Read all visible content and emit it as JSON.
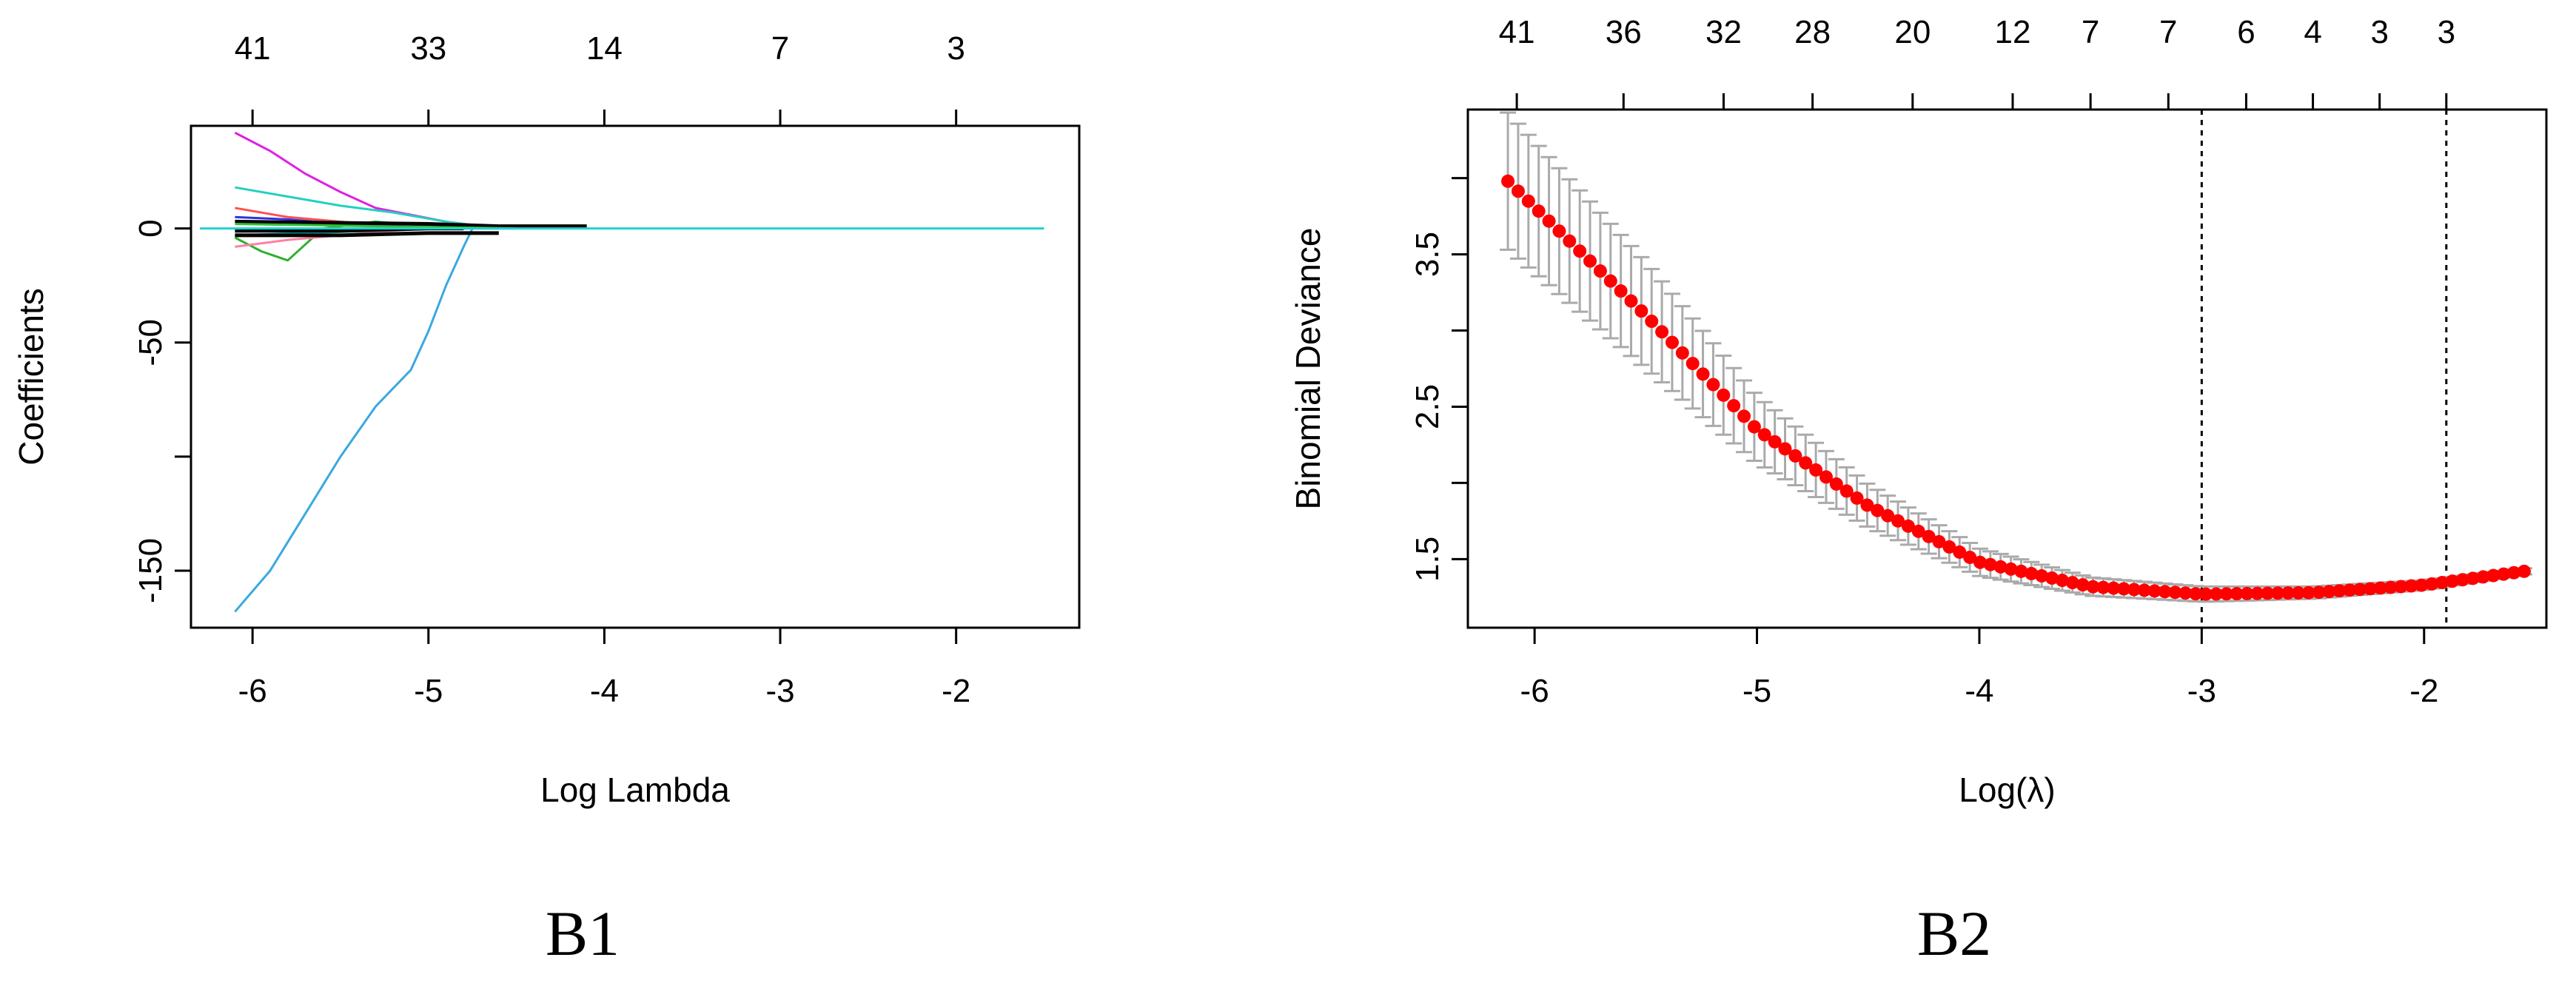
{
  "panel_labels": {
    "left": "B1",
    "right": "B2"
  },
  "chart_data": [
    {
      "type": "line",
      "xlabel": "Log Lambda",
      "ylabel": "Coefficients",
      "xlim": [
        -6.35,
        -1.3
      ],
      "ylim": [
        -175,
        45
      ],
      "x_ticks": [
        -6,
        -5,
        -4,
        -3,
        -2
      ],
      "y_ticks": [
        0,
        -50,
        -100,
        -150
      ],
      "y_tick_labels": [
        "0",
        "-50",
        "",
        "-150"
      ],
      "top_ticks": [
        {
          "x": -6,
          "label": "41"
        },
        {
          "x": -5,
          "label": "33"
        },
        {
          "x": -4,
          "label": "14"
        },
        {
          "x": -3,
          "label": "7"
        },
        {
          "x": -2,
          "label": "3"
        }
      ],
      "series": [
        {
          "color": "#3aa8e0",
          "x": [
            -6.1,
            -5.9,
            -5.7,
            -5.5,
            -5.3,
            -5.1,
            -5.0,
            -4.9,
            -4.8,
            -4.75
          ],
          "y": [
            -168,
            -150,
            -125,
            -100,
            -78,
            -62,
            -45,
            -25,
            -8,
            0
          ]
        },
        {
          "color": "#e020e0",
          "x": [
            -6.1,
            -5.9,
            -5.7,
            -5.5,
            -5.3,
            -5.1,
            -4.9,
            -4.7,
            -4.5
          ],
          "y": [
            42,
            34,
            24,
            16,
            9,
            6,
            3,
            1,
            0
          ]
        },
        {
          "color": "#22d0c0",
          "x": [
            -6.1,
            -5.8,
            -5.5,
            -5.2,
            -4.9,
            -4.6
          ],
          "y": [
            18,
            14,
            10,
            7,
            3,
            0
          ]
        },
        {
          "color": "#30b030",
          "x": [
            -6.1,
            -5.95,
            -5.8,
            -5.6,
            -5.3,
            -5.0,
            -4.8
          ],
          "y": [
            -4,
            -10,
            -14,
            0,
            3,
            1,
            0
          ]
        },
        {
          "color": "#ff5050",
          "x": [
            -6.1,
            -5.8,
            -5.5,
            -5.2,
            -4.9,
            -4.6
          ],
          "y": [
            9,
            5,
            3,
            1,
            0,
            0
          ]
        },
        {
          "color": "#ff80a0",
          "x": [
            -6.1,
            -5.8,
            -5.5,
            -5.2,
            -5.0
          ],
          "y": [
            -8,
            -5,
            -3,
            -1,
            0
          ]
        },
        {
          "color": "#3030e0",
          "x": [
            -6.1,
            -5.8,
            -5.5,
            -5.2,
            -4.9
          ],
          "y": [
            5,
            4,
            2,
            1,
            0
          ]
        },
        {
          "color": "#20b0b0",
          "x": [
            -6.1,
            -5.7,
            -5.3,
            -4.9,
            -4.5
          ],
          "y": [
            -3,
            -2,
            -1,
            0,
            0
          ]
        },
        {
          "color": "#000000",
          "x": [
            -6.1,
            -5.5,
            -5.0,
            -4.6
          ],
          "y": [
            -3,
            -3,
            -2,
            -2
          ]
        },
        {
          "color": "#000000",
          "x": [
            -6.1,
            -5.0,
            -4.6,
            -4.1
          ],
          "y": [
            3,
            2,
            1,
            1
          ]
        },
        {
          "color": "#000000",
          "x": [
            -6.1,
            -5.5,
            -5.0,
            -4.8
          ],
          "y": [
            -1,
            -1,
            0,
            0
          ]
        },
        {
          "color": "#30c030",
          "x": [
            -6.1,
            -5.7,
            -5.3,
            -4.9,
            -4.5
          ],
          "y": [
            2,
            1.5,
            1,
            0.5,
            0
          ]
        },
        {
          "color": "#22d0d0",
          "x": [
            -6.3,
            -2.2,
            -1.5
          ],
          "y": [
            0,
            0,
            0
          ]
        }
      ]
    },
    {
      "type": "scatter",
      "xlabel": "Log(λ)",
      "ylabel": "Binomial Deviance",
      "xlim": [
        -6.3,
        -1.45
      ],
      "ylim": [
        1.05,
        4.45
      ],
      "x_ticks": [
        -6,
        -5,
        -4,
        -3,
        -2
      ],
      "y_ticks": [
        1.5,
        2.0,
        2.5,
        3.0,
        3.5,
        4.0
      ],
      "y_tick_labels": [
        "1.5",
        "",
        "2.5",
        "",
        "3.5",
        ""
      ],
      "top_ticks": [
        {
          "x": -6.08,
          "label": "41"
        },
        {
          "x": -5.6,
          "label": "36"
        },
        {
          "x": -5.15,
          "label": "32"
        },
        {
          "x": -4.75,
          "label": "28"
        },
        {
          "x": -4.3,
          "label": "20"
        },
        {
          "x": -3.85,
          "label": "12"
        },
        {
          "x": -3.5,
          "label": "7"
        },
        {
          "x": -3.15,
          "label": "7"
        },
        {
          "x": -2.8,
          "label": "6"
        },
        {
          "x": -2.5,
          "label": "4"
        },
        {
          "x": -2.2,
          "label": "3"
        },
        {
          "x": -1.9,
          "label": "3"
        }
      ],
      "vlines": [
        -3.0,
        -1.9
      ],
      "curve": {
        "x": [
          -6.12,
          -5.5,
          -5.0,
          -4.5,
          -4.0,
          -3.5,
          -3.0,
          -2.5,
          -2.0,
          -1.55
        ],
        "y": [
          3.98,
          3.1,
          2.35,
          1.85,
          1.48,
          1.32,
          1.27,
          1.28,
          1.33,
          1.42
        ]
      },
      "error_halfwidth": {
        "x": [
          -6.12,
          -5.5,
          -5.0,
          -4.5,
          -4.0,
          -3.5,
          -3.0,
          -2.5,
          -2.0,
          -1.55
        ],
        "y": [
          0.45,
          0.35,
          0.22,
          0.14,
          0.09,
          0.06,
          0.05,
          0.04,
          0.03,
          0.02
        ]
      },
      "point_color": "#ff0000",
      "error_color": "#aaaaaa",
      "n_points": 100
    }
  ]
}
